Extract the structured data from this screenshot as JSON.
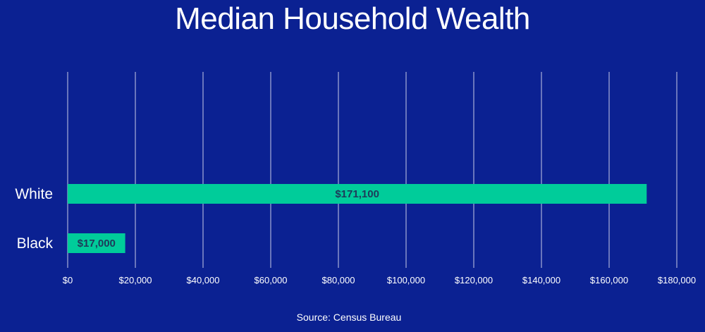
{
  "chart_data": {
    "type": "bar",
    "orientation": "horizontal",
    "title": "Median Household Wealth",
    "categories": [
      "White",
      "Black"
    ],
    "values": [
      171100,
      17000
    ],
    "value_labels": [
      "$171,100",
      "$17,000"
    ],
    "xlim": [
      0,
      180000
    ],
    "x_ticks": [
      0,
      20000,
      40000,
      60000,
      80000,
      100000,
      120000,
      140000,
      160000,
      180000
    ],
    "x_tick_labels": [
      "$0",
      "$20,000",
      "$40,000",
      "$60,000",
      "$80,000",
      "$100,000",
      "$120,000",
      "$140,000",
      "$160,000",
      "$180,000"
    ],
    "grid": "vertical",
    "legend": "none",
    "source": "Source: Census Bureau",
    "colors": {
      "background": "#0b2192",
      "bar": "#00cc9a",
      "grid": "#c8cce6",
      "text": "#ffffff",
      "value_label": "#1e3a5a"
    }
  }
}
